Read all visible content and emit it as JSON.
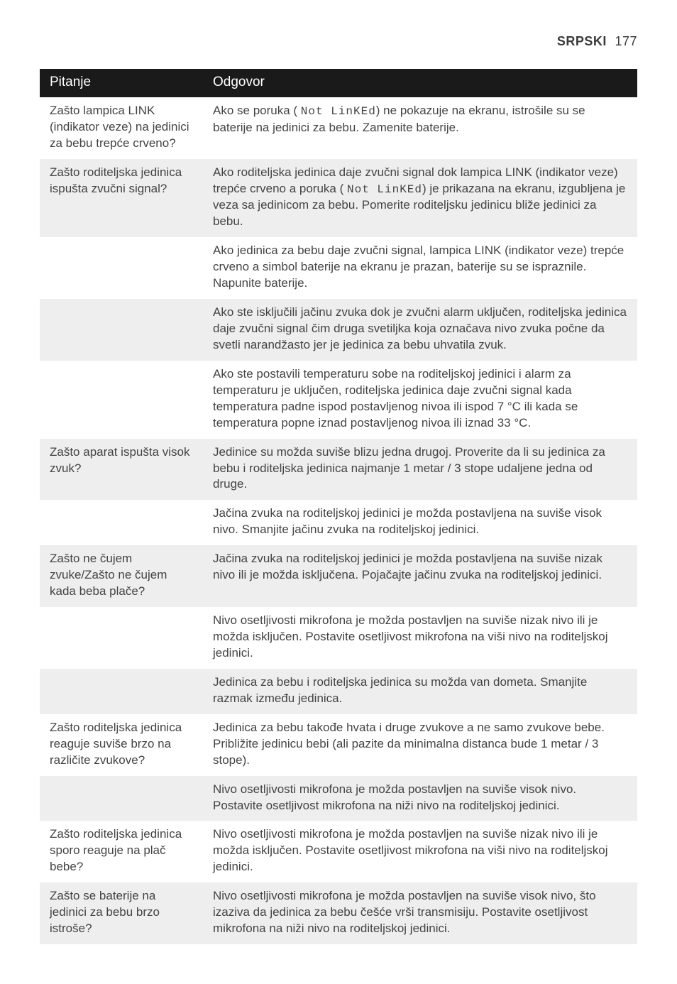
{
  "header": {
    "language": "SRPSKI",
    "page_number": "177"
  },
  "table": {
    "head": {
      "question": "Pitanje",
      "answer": "Odgovor"
    },
    "lcd_message": "Not LinKEd",
    "rows": [
      {
        "shade": false,
        "q": "Zašto lampica LINK (indikator veze) na jedinici za bebu trepće crveno?",
        "a_pre": "Ako se poruka (",
        "a_post": ") ne pokazuje na ekranu, istrošile su se baterije na jedinici za bebu. Zamenite baterije."
      },
      {
        "shade": true,
        "q": "Zašto roditeljska jedinica ispušta zvučni signal?",
        "a_pre": "Ako roditeljska jedinica daje zvučni signal dok lampica LINK (indikator veze) trepće crveno a poruka (",
        "a_post": ") je prikazana na ekranu, izgubljena je veza sa jedinicom za bebu. Pomerite roditeljsku jedinicu bliže jedinici za bebu."
      },
      {
        "shade": false,
        "q": "",
        "a": "Ako jedinica za bebu daje zvučni signal, lampica LINK (indikator veze) trepće crveno a simbol baterije na ekranu je prazan, baterije su se ispraznile. Napunite baterije."
      },
      {
        "shade": true,
        "q": "",
        "a": "Ako ste isključili jačinu zvuka dok je zvučni alarm uključen, roditeljska jedinica daje zvučni signal čim druga svetiljka koja označava nivo zvuka počne da svetli narandžasto jer je jedinica za bebu uhvatila zvuk."
      },
      {
        "shade": false,
        "q": "",
        "a": "Ako ste postavili temperaturu sobe na roditeljskoj jedinici i alarm za temperaturu je uključen, roditeljska jedinica daje zvučni signal kada temperatura padne ispod postavljenog nivoa ili ispod 7 °C ili kada se temperatura popne iznad postavljenog nivoa ili iznad 33 °C."
      },
      {
        "shade": true,
        "q": "Zašto aparat ispušta visok zvuk?",
        "a": "Jedinice su možda suviše blizu jedna drugoj. Proverite da li su jedinica za bebu i roditeljska jedinica najmanje 1 metar / 3 stope udaljene jedna od druge."
      },
      {
        "shade": false,
        "q": "",
        "a": "Jačina zvuka na roditeljskoj jedinici je možda postavljena na suviše visok nivo. Smanjite jačinu zvuka na roditeljskoj jedinici."
      },
      {
        "shade": true,
        "q": "Zašto ne čujem zvuke/Zašto ne čujem kada beba plače?",
        "a": "Jačina zvuka na roditeljskoj jedinici je možda postavljena na suviše nizak nivo ili je možda isključena. Pojačajte jačinu zvuka na roditeljskoj jedinici."
      },
      {
        "shade": false,
        "q": "",
        "a": "Nivo osetljivosti mikrofona je možda postavljen na suviše nizak nivo ili je možda isključen. Postavite osetljivost mikrofona na viši nivo na roditeljskoj jedinici."
      },
      {
        "shade": true,
        "q": "",
        "a": "Jedinica za bebu i roditeljska jedinica su možda van dometa. Smanjite razmak između jedinica."
      },
      {
        "shade": false,
        "q": "Zašto roditeljska jedinica reaguje suviše brzo na različite zvukove?",
        "a": "Jedinica za bebu takođe hvata i druge zvukove a ne samo zvukove bebe. Približite jedinicu bebi (ali pazite da minimalna distanca bude 1 metar / 3 stope)."
      },
      {
        "shade": true,
        "q": "",
        "a": "Nivo osetljivosti mikrofona je možda postavljen na suviše visok nivo. Postavite osetljivost mikrofona na niži nivo na roditeljskoj jedinici."
      },
      {
        "shade": false,
        "q": "Zašto roditeljska jedinica sporo reaguje na plač bebe?",
        "a": "Nivo osetljivosti mikrofona je možda postavljen na suviše nizak nivo ili je možda isključen. Postavite osetljivost mikrofona na viši nivo na roditeljskoj jedinici."
      },
      {
        "shade": true,
        "q": "Zašto se baterije na jedinici za bebu brzo istroše?",
        "a": "Nivo osetljivosti mikrofona je možda postavljen na suviše visok nivo, što izaziva da jedinica za bebu češće vrši transmisiju. Postavite osetljivost mikrofona na niži nivo na roditeljskoj jedinici."
      }
    ]
  }
}
